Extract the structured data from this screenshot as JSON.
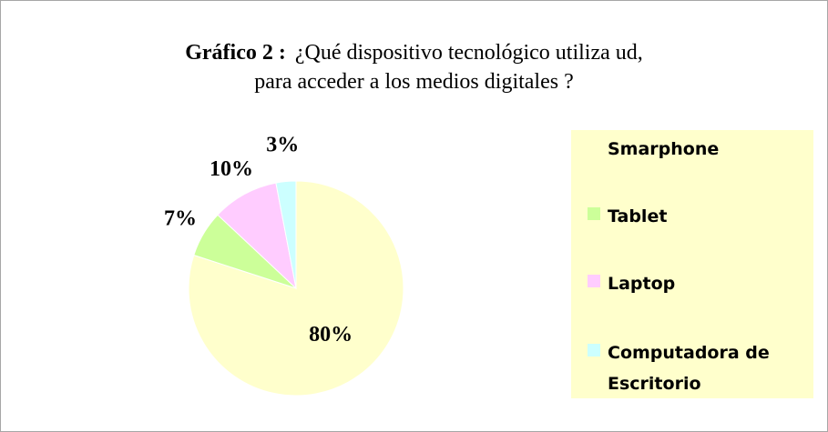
{
  "chart_data": {
    "type": "pie",
    "title": "Gráfico 2 :",
    "subtitle": [
      "¿Qué dispositivo tecnológico utiliza ud,",
      "para   acceder a los medios digitales ?"
    ],
    "categories": [
      "Smarphone",
      "Tablet",
      "Laptop",
      "Computadora de Escritorio"
    ],
    "values": [
      80,
      7,
      10,
      3
    ],
    "value_labels": [
      "80%",
      "7%",
      "10%",
      "3%"
    ],
    "colors": [
      "#ffffcc",
      "#ccff99",
      "#ffccff",
      "#ccffff"
    ],
    "legend": "right"
  }
}
